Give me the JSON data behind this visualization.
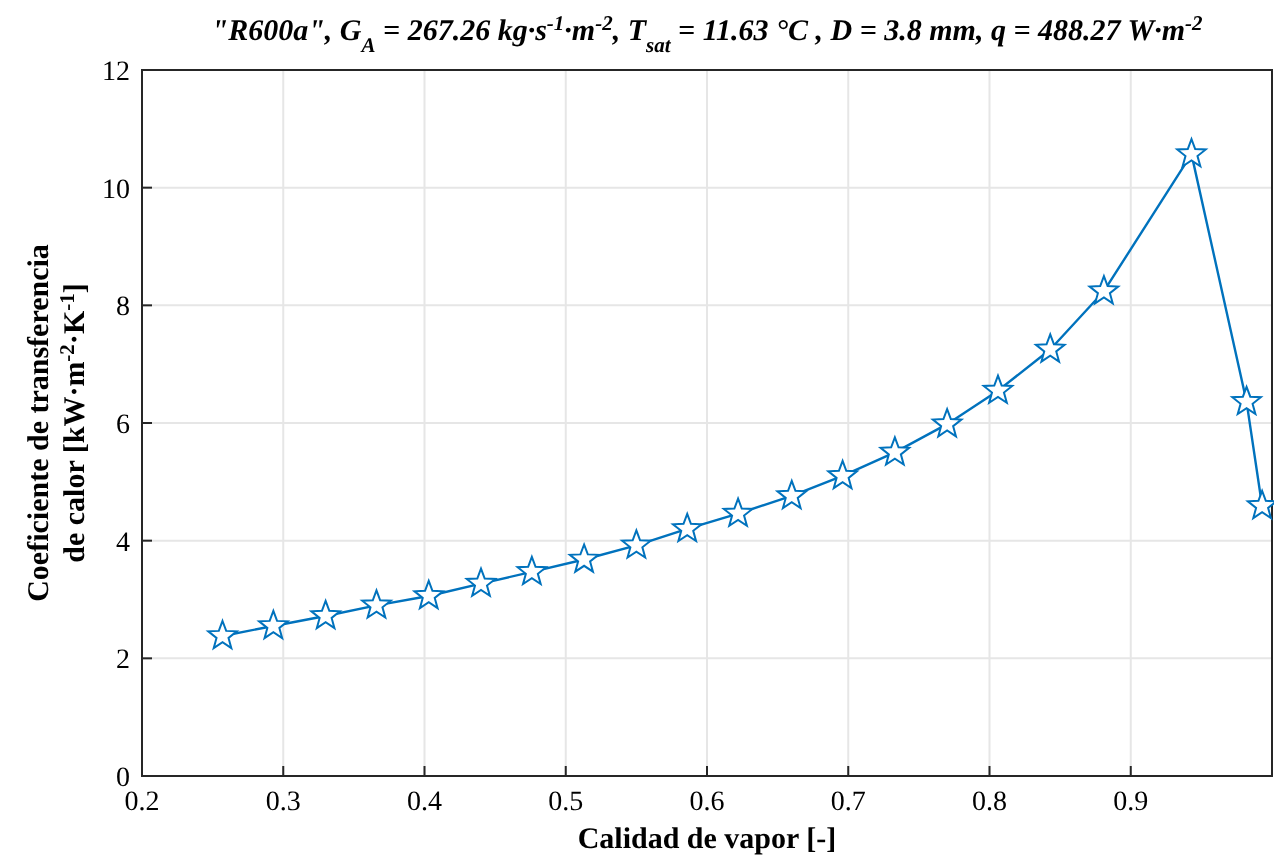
{
  "chart_data": {
    "type": "line",
    "title": "\"R600a\", G$_{A}$ = 267.26 kg·s$^{-1}$·m$^{-2}$, T$_{sat}$ = 11.63 °C , D = 3.8 mm, q = 488.27 W·m$^{-2}$",
    "xlabel": "Calidad de vapor [-]",
    "ylabel": "Coeficiente de transferencia\nde calor [kW·m$^{-2}$·K$^{-1}$]",
    "x": [
      0.257,
      0.293,
      0.33,
      0.366,
      0.403,
      0.44,
      0.476,
      0.513,
      0.55,
      0.586,
      0.622,
      0.66,
      0.696,
      0.733,
      0.77,
      0.806,
      0.843,
      0.881,
      0.943,
      0.982,
      0.993
    ],
    "series": [
      {
        "color": "#0072bd",
        "values": [
          2.38,
          2.55,
          2.72,
          2.9,
          3.06,
          3.27,
          3.47,
          3.68,
          3.92,
          4.2,
          4.46,
          4.76,
          5.1,
          5.5,
          5.98,
          6.55,
          7.25,
          8.24,
          10.57,
          6.36,
          4.59
        ]
      }
    ],
    "xlim": [
      0.2,
      1
    ],
    "xticks": [
      0.2,
      0.3,
      0.4,
      0.5,
      0.6,
      0.7,
      0.8,
      0.9
    ],
    "ylim": [
      0,
      12
    ],
    "yticks": [
      0,
      2,
      4,
      6,
      8,
      10,
      12
    ],
    "grid": true,
    "marker": "star",
    "line_style": "solid"
  }
}
